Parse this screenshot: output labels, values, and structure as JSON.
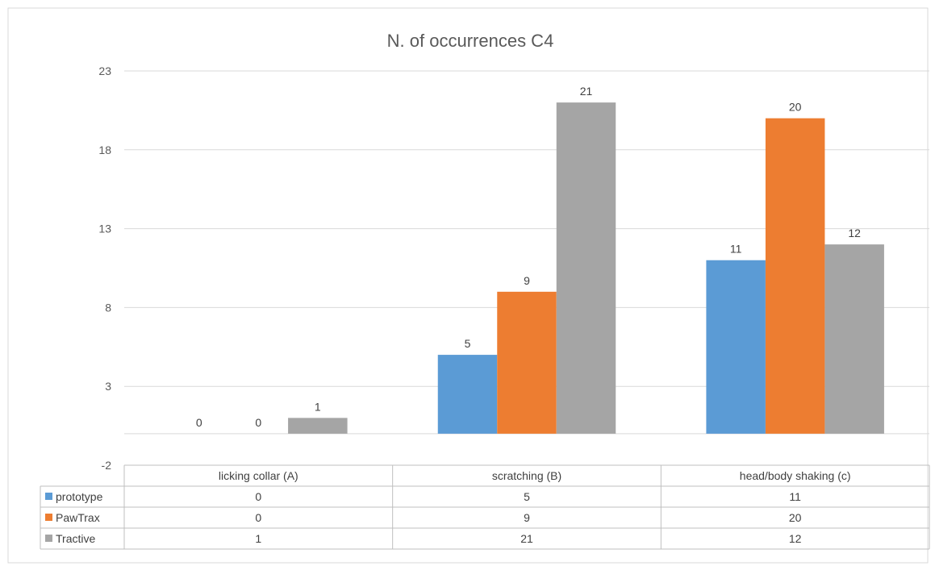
{
  "chart_data": {
    "type": "bar",
    "title": "N. of occurrences C4",
    "categories": [
      "licking collar (A)",
      "scratching (B)",
      "head/body shaking (c)"
    ],
    "series": [
      {
        "name": "prototype",
        "color": "#5b9bd5",
        "values": [
          0,
          5,
          11
        ]
      },
      {
        "name": "PawTrax",
        "color": "#ed7d31",
        "values": [
          0,
          9,
          20
        ]
      },
      {
        "name": "Tractive",
        "color": "#a5a5a5",
        "values": [
          1,
          21,
          12
        ]
      }
    ],
    "yticks": [
      "-2",
      "3",
      "8",
      "13",
      "18",
      "23"
    ],
    "ylim": [
      -2,
      23
    ],
    "data_table": true,
    "grid": true,
    "data_labels": true
  }
}
